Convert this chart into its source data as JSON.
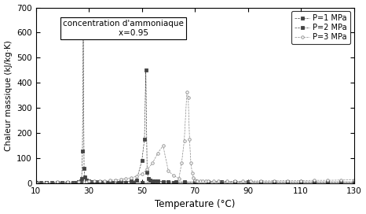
{
  "title": "",
  "xlabel": "Temperature (°C)",
  "ylabel": "Chaleur massique (kJ/kg·K)",
  "xlim": [
    10,
    130
  ],
  "ylim": [
    0,
    700
  ],
  "xticks": [
    10,
    30,
    50,
    70,
    90,
    110,
    130
  ],
  "yticks": [
    0,
    100,
    200,
    300,
    400,
    500,
    600,
    700
  ],
  "annotation_text": "concentration d'ammoniaque\n        x=0.95",
  "series": [
    {
      "label": "P=1 MPa",
      "color": "#444444",
      "marker": "s",
      "linestyle": "--",
      "linewidth": 0.5,
      "markersize": 2.5,
      "markerfacecolor": "#444444",
      "data_x": [
        10,
        12,
        14,
        16,
        18,
        20,
        22,
        24,
        25,
        26,
        27,
        27.3,
        27.6,
        27.9,
        28.2,
        28.5,
        29,
        29.5,
        30,
        30.5,
        31,
        32,
        33,
        34,
        35,
        37,
        39,
        41,
        44,
        47,
        50,
        54,
        58,
        62,
        66,
        70,
        75,
        80,
        85,
        90,
        95,
        100,
        105,
        110,
        115,
        120,
        125,
        130
      ],
      "data_y": [
        3,
        3,
        3,
        3,
        3,
        3,
        3,
        4,
        4,
        5,
        8,
        20,
        130,
        600,
        60,
        25,
        14,
        10,
        8,
        7,
        6,
        5,
        5,
        5,
        4,
        4,
        4,
        4,
        4,
        4,
        4,
        4,
        4,
        4,
        4,
        4,
        4,
        4,
        4,
        4,
        4,
        4,
        4,
        4,
        4,
        4,
        4,
        4
      ]
    },
    {
      "label": "P=2 MPa",
      "color": "#444444",
      "marker": "s",
      "linestyle": "--",
      "linewidth": 0.5,
      "markersize": 2.5,
      "markerfacecolor": "#444444",
      "data_x": [
        10,
        14,
        18,
        22,
        26,
        30,
        34,
        38,
        42,
        46,
        48,
        50,
        51,
        51.5,
        52,
        52.5,
        53,
        54,
        55,
        56,
        58,
        60,
        63,
        66,
        70,
        75,
        80,
        85,
        90,
        95,
        100,
        105,
        110,
        115,
        120,
        125,
        130
      ],
      "data_y": [
        3,
        3,
        3,
        4,
        4,
        5,
        5,
        5,
        6,
        8,
        12,
        90,
        175,
        450,
        45,
        18,
        12,
        10,
        9,
        8,
        7,
        6,
        5,
        5,
        5,
        5,
        5,
        5,
        5,
        5,
        5,
        5,
        5,
        5,
        5,
        5,
        5
      ]
    },
    {
      "label": "P=3 MPa",
      "color": "#888888",
      "marker": "o",
      "linestyle": "--",
      "linewidth": 0.5,
      "markersize": 2.5,
      "markerfacecolor": "white",
      "data_x": [
        10,
        14,
        18,
        22,
        26,
        29,
        30,
        32,
        34,
        36,
        38,
        40,
        42,
        44,
        46,
        48,
        50,
        52,
        54,
        56,
        58,
        60,
        62,
        64,
        65,
        66,
        67,
        67.5,
        68,
        68.5,
        69,
        69.5,
        70,
        70.5,
        71,
        72,
        73,
        74,
        75,
        77,
        79,
        82,
        85,
        88,
        91,
        95,
        100,
        105,
        110,
        115,
        120,
        125,
        130
      ],
      "data_y": [
        4,
        4,
        5,
        5,
        6,
        7,
        8,
        9,
        10,
        11,
        12,
        14,
        16,
        18,
        22,
        28,
        38,
        55,
        80,
        120,
        150,
        50,
        30,
        20,
        80,
        170,
        365,
        340,
        175,
        80,
        40,
        22,
        14,
        10,
        9,
        8,
        8,
        8,
        8,
        8,
        8,
        8,
        8,
        9,
        9,
        10,
        10,
        11,
        11,
        12,
        12,
        13,
        14
      ]
    }
  ]
}
